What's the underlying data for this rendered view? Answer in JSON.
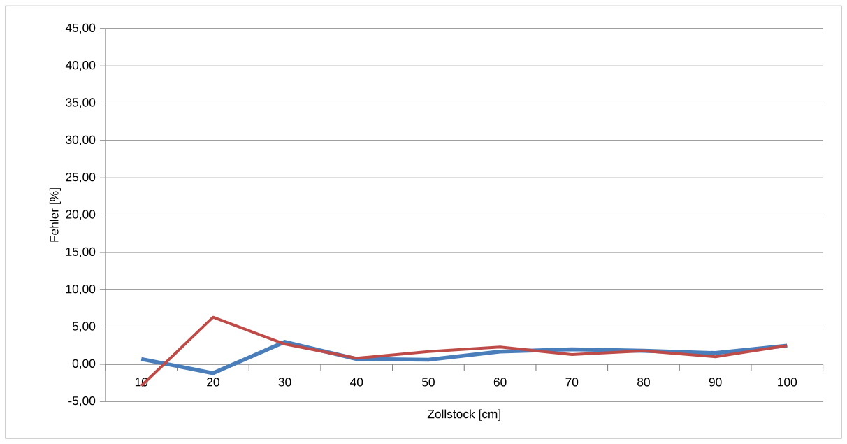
{
  "chart_data": {
    "type": "line",
    "xlabel": "Zollstock [cm]",
    "ylabel": "Fehler  [%]",
    "categories": [
      "10",
      "20",
      "30",
      "40",
      "50",
      "60",
      "70",
      "80",
      "90",
      "100"
    ],
    "series": [
      {
        "color": "#4a7ebb",
        "values": [
          0.7,
          -1.2,
          3.0,
          0.7,
          0.6,
          1.7,
          2.0,
          1.8,
          1.5,
          2.5
        ]
      },
      {
        "color": "#be4b48",
        "values": [
          -2.9,
          6.3,
          2.7,
          0.8,
          1.7,
          2.3,
          1.3,
          1.8,
          1.0,
          2.5
        ]
      }
    ],
    "ylim": [
      -5,
      45
    ],
    "yticks": [
      {
        "value": -5,
        "label": "-5,00"
      },
      {
        "value": 0,
        "label": "0,00"
      },
      {
        "value": 5,
        "label": "5,00"
      },
      {
        "value": 10,
        "label": "10,00"
      },
      {
        "value": 15,
        "label": "15,00"
      },
      {
        "value": 20,
        "label": "20,00"
      },
      {
        "value": 25,
        "label": "25,00"
      },
      {
        "value": 30,
        "label": "30,00"
      },
      {
        "value": 35,
        "label": "35,00"
      },
      {
        "value": 40,
        "label": "40,00"
      },
      {
        "value": 45,
        "label": "45,00"
      }
    ],
    "grid": "y",
    "marker": "none",
    "line_style": "solid"
  }
}
